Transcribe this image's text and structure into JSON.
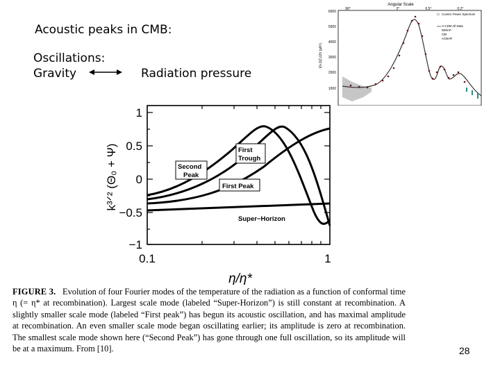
{
  "slide": {
    "title": "Acoustic peaks in CMB:",
    "oscillations_label": "Oscillations:",
    "gravity_label": "Gravity",
    "radiation_label": "Radiation pressure",
    "page_number": "28"
  },
  "main_plot": {
    "y_ticks": [
      "1",
      "0.5",
      "0",
      "−0.5",
      "−1"
    ],
    "x_ticks": [
      "0.1",
      "1"
    ],
    "ylabel": "k³ᐟ² (Θ₀ + Ψ)",
    "xlabel": "η/η*",
    "labels": {
      "first_trough": [
        "First",
        "Trough"
      ],
      "second_peak": [
        "Second",
        "Peak"
      ],
      "first_peak": "First Peak",
      "super_horizon": "Super−Horizon"
    }
  },
  "inset_plot": {
    "title": "Angular Scale",
    "top_ticks": [
      "90°",
      "2°",
      "0.5°",
      "0.2°"
    ],
    "y_ticks": [
      "6000",
      "5000",
      "4000",
      "3000",
      "2000",
      "1000"
    ],
    "ylabel": "l(l+1)Cₗ/2π (μK²)",
    "legend": [
      "Cosmic Power Spectrum",
      "Λ-CDM All Data",
      "WMAP",
      "CBI",
      "ACBAR"
    ]
  },
  "caption": {
    "heading": "FIGURE 3.",
    "body": "Evolution of four Fourier modes of the temperature of the radiation as a function of conformal time η (= η* at recombination). Largest scale mode (labeled “Super-Horizon”) is still constant at recombination. A slightly smaller scale mode (labeled “First peak”) has begun its acoustic oscillation, and has maximal amplitude at recombination. An even smaller scale mode began oscillating earlier; its amplitude is zero at recombination. The smallest scale mode shown here (“Second Peak”) has gone through one full oscillation, so its amplitude will be at a maximum. From [10]."
  }
}
